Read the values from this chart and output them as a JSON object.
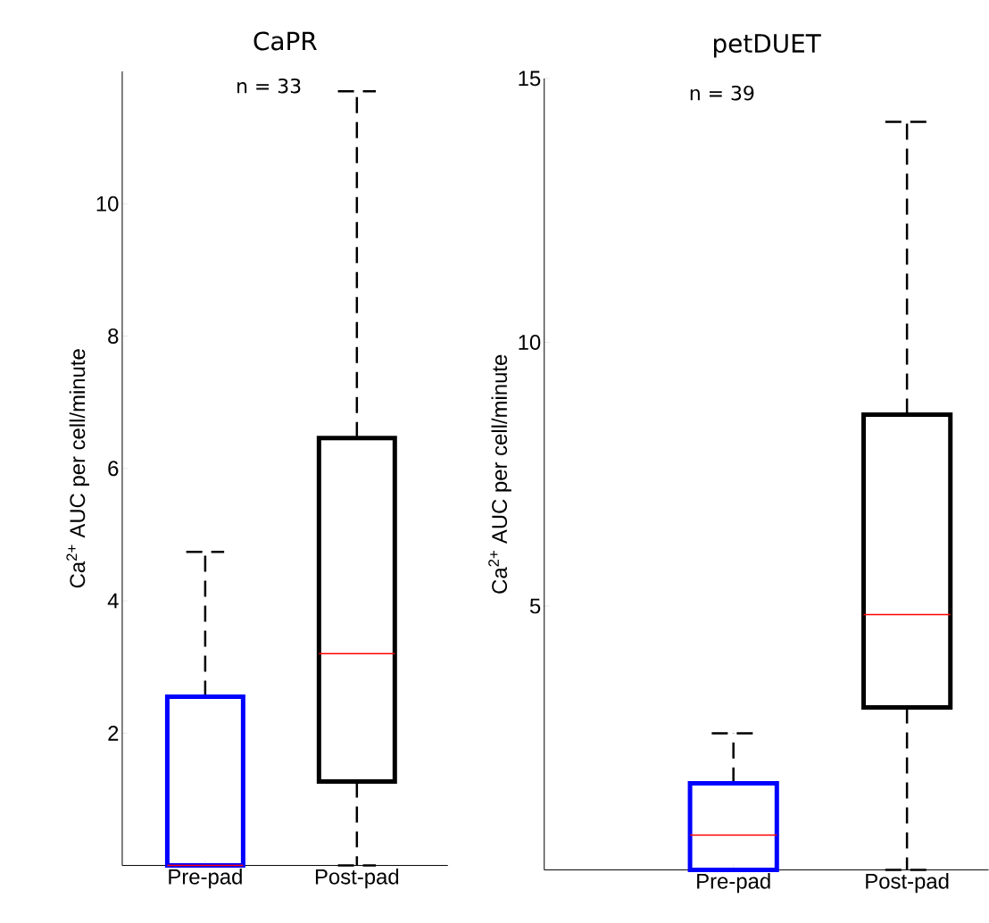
{
  "chart_data": [
    {
      "type": "box",
      "title": "CaPR",
      "ylabel": "Ca$^{2+}$ AUC per cell/minute",
      "categories": [
        "Pre-pad",
        "Post-pad"
      ],
      "colors": [
        "#0000ff",
        "#000000"
      ],
      "boxes": [
        {
          "low": 0,
          "q1": 0,
          "median": 0,
          "q3": 2.55,
          "high": 4.74
        },
        {
          "low": 0,
          "q1": 1.27,
          "median": 3.2,
          "q3": 6.46,
          "high": 11.7
        }
      ],
      "ylim": [
        0,
        12
      ],
      "yticks": [
        2,
        4,
        6,
        8,
        10
      ],
      "annotations": [
        "n = 33"
      ]
    },
    {
      "type": "box",
      "title": "petDUET",
      "ylabel": "Ca$^{2+}$ AUC per cell/minute",
      "categories": [
        "Pre-pad",
        "Post-pad"
      ],
      "colors": [
        "#0000ff",
        "#000000"
      ],
      "boxes": [
        {
          "low": 0,
          "q1": 0,
          "median": 0.66,
          "q3": 1.64,
          "high": 2.59
        },
        {
          "low": 0,
          "q1": 3.08,
          "median": 4.84,
          "q3": 8.63,
          "high": 14.18
        }
      ],
      "ylim": [
        0,
        15
      ],
      "yticks": [
        5,
        10,
        15
      ],
      "annotations": [
        "n = 39"
      ]
    }
  ]
}
